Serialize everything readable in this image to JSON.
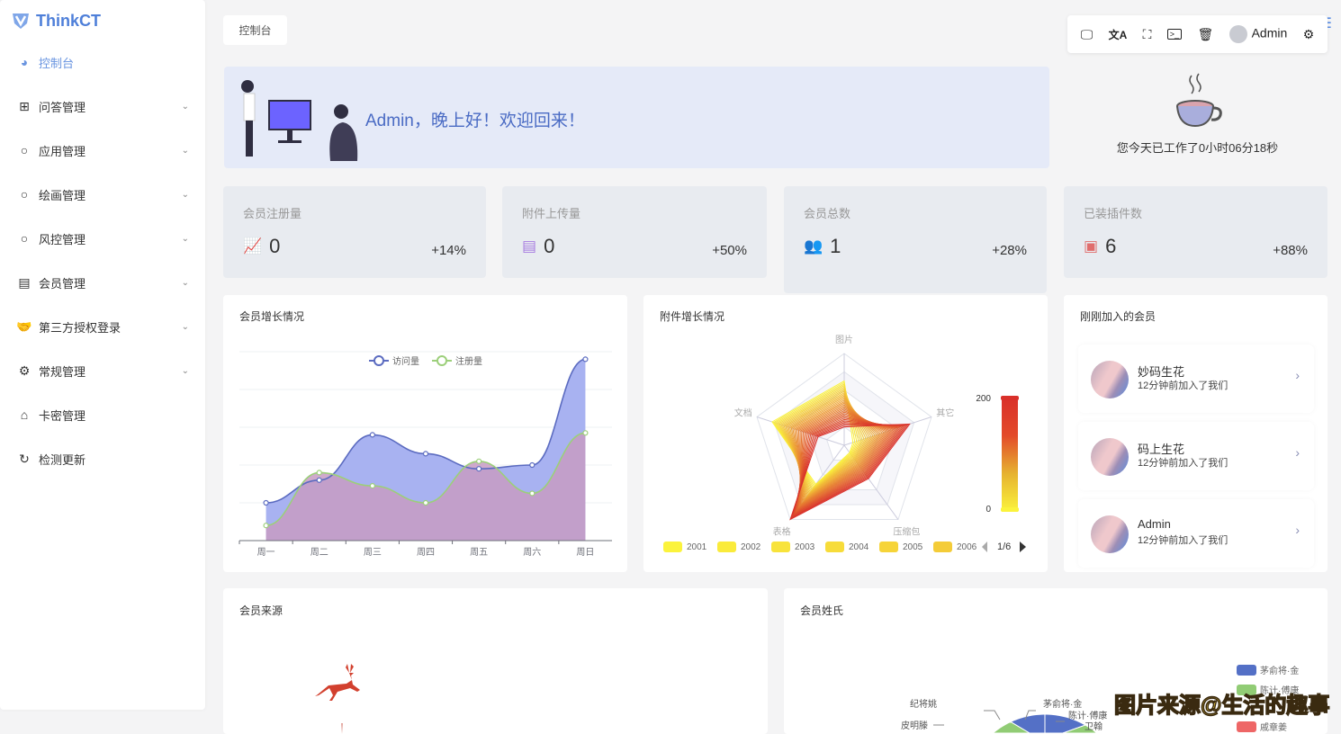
{
  "sidebar": {
    "brand": "ThinkCT",
    "items": [
      {
        "label": "控制台",
        "icon": "dashboard-icon",
        "active": true
      },
      {
        "label": "问答管理",
        "icon": "box-icon",
        "expandable": true
      },
      {
        "label": "应用管理",
        "icon": "circle-icon",
        "expandable": true
      },
      {
        "label": "绘画管理",
        "icon": "circle-icon",
        "expandable": true
      },
      {
        "label": "风控管理",
        "icon": "circle-icon",
        "expandable": true
      },
      {
        "label": "会员管理",
        "icon": "id-card-icon",
        "expandable": true
      },
      {
        "label": "第三方授权登录",
        "icon": "handshake-icon",
        "expandable": true
      },
      {
        "label": "常规管理",
        "icon": "gears-icon",
        "expandable": true
      },
      {
        "label": "卡密管理",
        "icon": "tag-icon"
      },
      {
        "label": "检测更新",
        "icon": "refresh-icon"
      }
    ]
  },
  "breadcrumb": "控制台",
  "toolbar": {
    "user": "Admin"
  },
  "banner": {
    "welcome": "Admin，晚上好！欢迎回来！"
  },
  "worktime": "您今天已工作了0小时06分18秒",
  "stats": [
    {
      "title": "会员注册量",
      "value": "0",
      "change": "+14%",
      "icon": "line-chart-icon",
      "color": "#8b7fd6"
    },
    {
      "title": "附件上传量",
      "value": "0",
      "change": "+50%",
      "icon": "file-icon",
      "color": "#a77be0"
    },
    {
      "title": "会员总数",
      "value": "1",
      "change": "+28%",
      "icon": "users-icon",
      "color": "#8794a8"
    },
    {
      "title": "已装插件数",
      "value": "6",
      "change": "+88%",
      "icon": "plugin-icon",
      "color": "#e06d6d"
    }
  ],
  "charts": {
    "growth_title": "会员增长情况",
    "attach_title": "附件增长情况",
    "new_members_title": "刚刚加入的会员",
    "source_title": "会员来源",
    "surname_title": "会员姓氏"
  },
  "chart_data": [
    {
      "type": "area",
      "title": "会员增长情况",
      "categories": [
        "周一",
        "周二",
        "周三",
        "周四",
        "周五",
        "周六",
        "周日"
      ],
      "series": [
        {
          "name": "访问量",
          "color": "#5b6bc0",
          "fill": "#a3aef0",
          "values": [
            1.0,
            1.6,
            2.8,
            2.3,
            1.9,
            2.0,
            4.8
          ]
        },
        {
          "name": "注册量",
          "color": "#9ccf7a",
          "fill": "#c79bc3",
          "values": [
            0.4,
            1.8,
            1.45,
            1.0,
            2.1,
            1.25,
            2.85
          ]
        }
      ],
      "ylim": [
        0,
        5
      ],
      "grid": true,
      "legend": "top"
    },
    {
      "type": "radar",
      "title": "附件增长情况",
      "indicators": [
        "图片",
        "其它",
        "压缩包",
        "表格",
        "文档"
      ],
      "visual_map": {
        "min": 0,
        "max": 200,
        "colors": [
          "#fbf33c",
          "#e6b230",
          "#e34a2a",
          "#d9302a"
        ]
      },
      "legend": [
        "2001",
        "2002",
        "2003",
        "2004",
        "2005",
        "2006"
      ],
      "legend_page": "1/6",
      "series_start": [
        140,
        20,
        20,
        105,
        165
      ],
      "series_end": [
        40,
        150,
        90,
        200,
        60
      ]
    },
    {
      "type": "pie",
      "title": "会员姓氏",
      "legend": [
        {
          "name": "茅俞将·金",
          "color": "#5470c6"
        },
        {
          "name": "陈计·傅康",
          "color": "#91cc75"
        },
        {
          "name": "戚章姜",
          "color": "#ee6666"
        }
      ],
      "labels": [
        "纪将姚",
        "茅俞将·金",
        "陈计·傅康",
        "皮明滕",
        "卫翰"
      ]
    }
  ],
  "new_members": [
    {
      "name": "妙码生花",
      "joined": "12分钟前加入了我们"
    },
    {
      "name": "码上生花",
      "joined": "12分钟前加入了我们"
    },
    {
      "name": "Admin",
      "joined": "12分钟前加入了我们"
    }
  ],
  "watermark": "图片来源@生活的趣事"
}
